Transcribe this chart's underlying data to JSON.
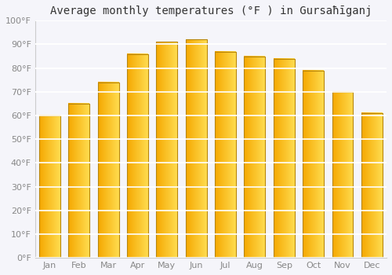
{
  "title": "Average monthly temperatures (°F ) in Gursaħīganj",
  "months": [
    "Jan",
    "Feb",
    "Mar",
    "Apr",
    "May",
    "Jun",
    "Jul",
    "Aug",
    "Sep",
    "Oct",
    "Nov",
    "Dec"
  ],
  "values": [
    60,
    65,
    74,
    86,
    91,
    92,
    87,
    85,
    84,
    79,
    70,
    61
  ],
  "bar_color_left": "#F5A800",
  "bar_color_right": "#FFD966",
  "bar_edge_color": "#B8860B",
  "ylim": [
    0,
    100
  ],
  "yticks": [
    0,
    10,
    20,
    30,
    40,
    50,
    60,
    70,
    80,
    90,
    100
  ],
  "ytick_labels": [
    "0°F",
    "10°F",
    "20°F",
    "30°F",
    "40°F",
    "50°F",
    "60°F",
    "70°F",
    "80°F",
    "90°F",
    "100°F"
  ],
  "background_color": "#f5f5fa",
  "plot_bg_color": "#f5f5fa",
  "title_fontsize": 10,
  "tick_fontsize": 8,
  "grid_color": "#ffffff",
  "grid_linewidth": 1.2
}
